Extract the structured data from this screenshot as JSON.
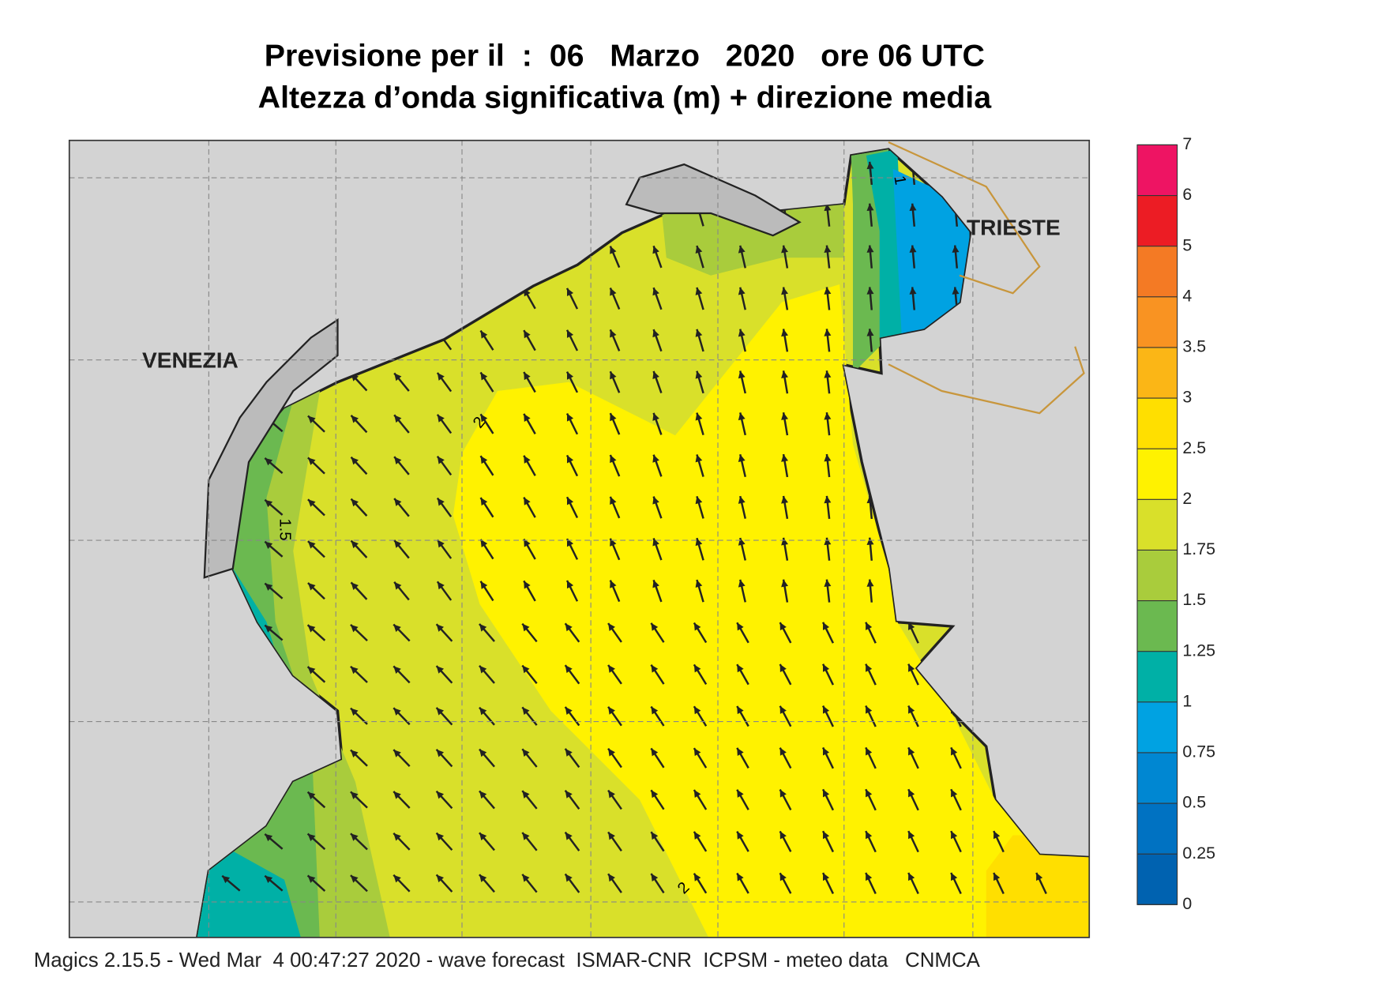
{
  "header": {
    "title": "Previsione per il  :  06   Marzo   2020   ore 06 UTC",
    "subtitle": "Altezza d’onda significativa (m) + direzione media"
  },
  "map": {
    "places": [
      "VENEZIA",
      "TRIESTE"
    ],
    "contour_labels": [
      "1",
      "2",
      "1.5",
      "2"
    ]
  },
  "legend": {
    "ticks": [
      0,
      0.25,
      0.5,
      0.75,
      1,
      1.25,
      1.5,
      1.75,
      2,
      2.5,
      3,
      3.5,
      4,
      5,
      6,
      7
    ],
    "colors": [
      "#0062b0",
      "#0072c2",
      "#0087d2",
      "#00a2e2",
      "#00b0a6",
      "#6bb950",
      "#a9cc3c",
      "#d9e02a",
      "#fff200",
      "#ffdf00",
      "#fbb616",
      "#f99322",
      "#f47a24",
      "#ec1c24",
      "#ee1463"
    ]
  },
  "footer": "Magics 2.15.5 - Wed Mar  4 00:47:27 2020 - wave forecast  ISMAR-CNR  ICPSM - meteo data   CNMCA"
}
